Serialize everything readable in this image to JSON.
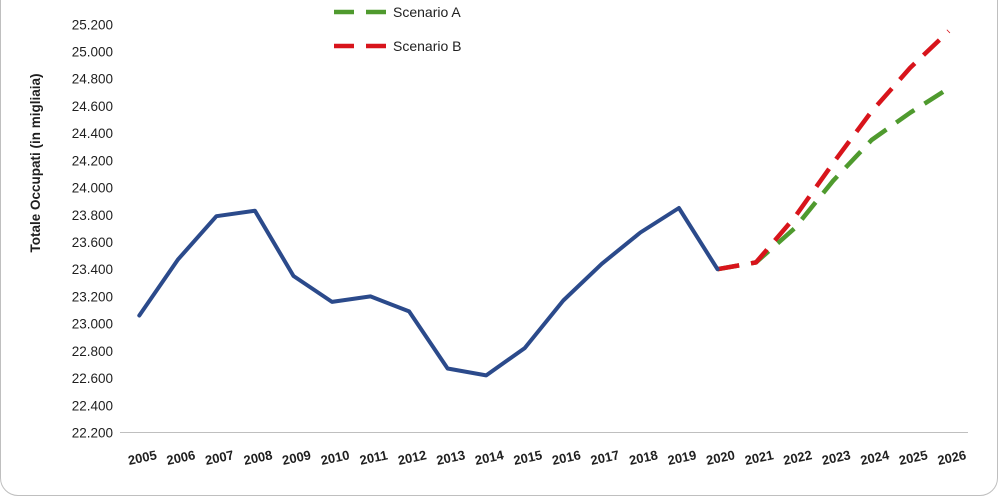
{
  "chart_data": {
    "type": "line",
    "title": "",
    "xlabel": "",
    "ylabel": "Totale Occupati (in migliaia)",
    "ylim": [
      22200,
      25200
    ],
    "ytick_step": 200,
    "categories": [
      "2005",
      "2006",
      "2007",
      "2008",
      "2009",
      "2010",
      "2011",
      "2012",
      "2013",
      "2014",
      "2015",
      "2016",
      "2017",
      "2018",
      "2019",
      "2020",
      "2021",
      "2022",
      "2023",
      "2024",
      "2025",
      "2026"
    ],
    "series": [
      {
        "name": "",
        "color": "#2b4a8b",
        "style": "solid",
        "x": [
          "2005",
          "2006",
          "2007",
          "2008",
          "2009",
          "2010",
          "2011",
          "2012",
          "2013",
          "2014",
          "2015",
          "2016",
          "2017",
          "2018",
          "2019",
          "2020"
        ],
        "values": [
          23060,
          23470,
          23790,
          23830,
          23350,
          23160,
          23200,
          23090,
          22670,
          22620,
          22820,
          23170,
          23440,
          23670,
          23850,
          23400
        ]
      },
      {
        "name": "Scenario A",
        "color": "#4f9a2e",
        "style": "dashed",
        "x": [
          "2020",
          "2021",
          "2022",
          "2023",
          "2024",
          "2025",
          "2026"
        ],
        "values": [
          23400,
          23450,
          23700,
          24050,
          24350,
          24550,
          24730
        ]
      },
      {
        "name": "Scenario B",
        "color": "#d8141b",
        "style": "dashed",
        "x": [
          "2020",
          "2021",
          "2022",
          "2023",
          "2024",
          "2025",
          "2026"
        ],
        "values": [
          23400,
          23450,
          23780,
          24180,
          24560,
          24880,
          25150
        ]
      }
    ],
    "legend": {
      "placement": "top-center",
      "entries": [
        "Scenario A",
        "Scenario B"
      ]
    },
    "grid": false
  }
}
